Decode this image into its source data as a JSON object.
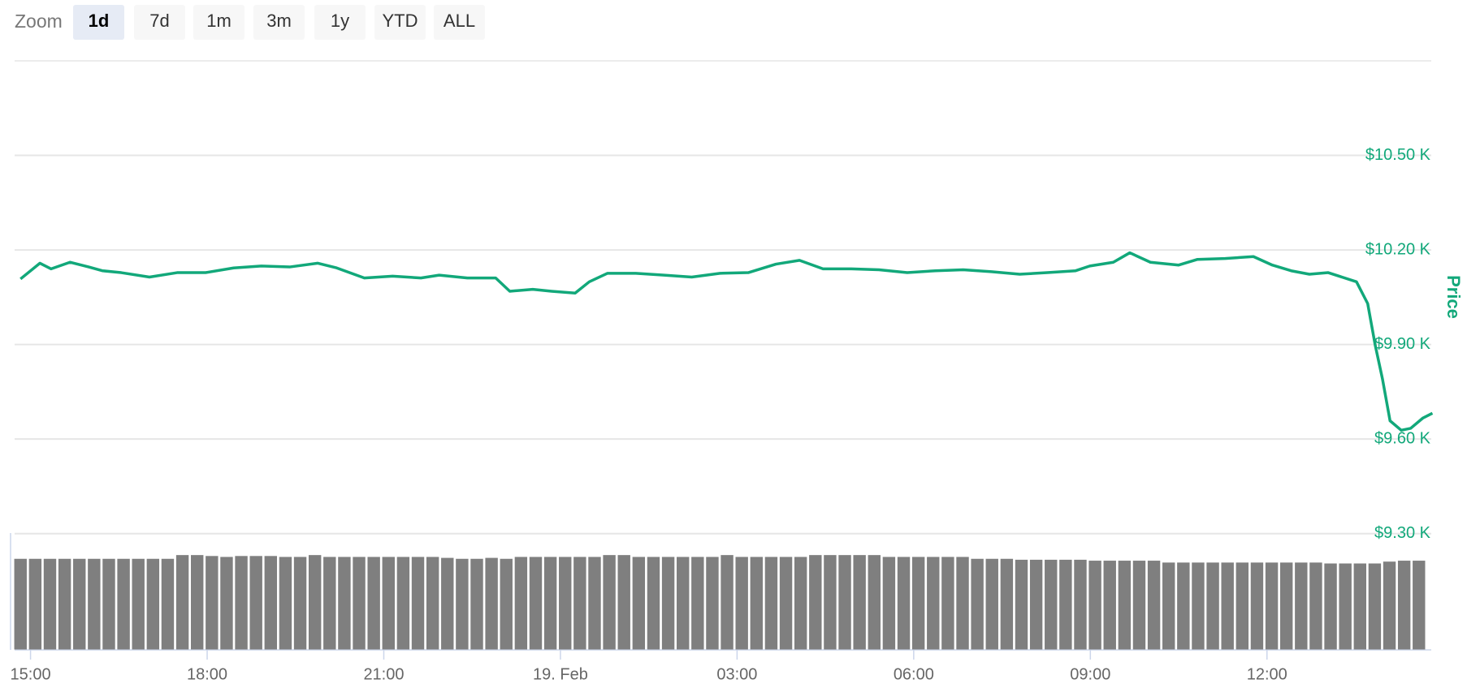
{
  "zoom": {
    "label": "Zoom",
    "buttons": [
      "1d",
      "7d",
      "1m",
      "3m",
      "1y",
      "YTD",
      "ALL"
    ],
    "selected": 0
  },
  "chart_data": {
    "type": "line",
    "y_title": "Price",
    "color": "#12a87a",
    "grid": true,
    "xlim": [
      14.73,
      38.79
    ],
    "xticks": [
      {
        "value": 15,
        "label": "15:00"
      },
      {
        "value": 18,
        "label": "18:00"
      },
      {
        "value": 21,
        "label": "21:00"
      },
      {
        "value": 24,
        "label": "19. Feb"
      },
      {
        "value": 27,
        "label": "03:00"
      },
      {
        "value": 30,
        "label": "06:00"
      },
      {
        "value": 33,
        "label": "09:00"
      },
      {
        "value": 36,
        "label": "12:00"
      }
    ],
    "ylim": [
      9300,
      10800
    ],
    "yticks": [
      {
        "value": 9300,
        "label": "$9.30 K"
      },
      {
        "value": 9600,
        "label": "$9.60 K"
      },
      {
        "value": 9900,
        "label": "$9.90 K"
      },
      {
        "value": 10200,
        "label": "$10.20 K"
      },
      {
        "value": 10500,
        "label": "$10.50 K"
      }
    ],
    "x": [
      14.83,
      15.16,
      15.35,
      15.67,
      15.99,
      16.22,
      16.54,
      17.02,
      17.49,
      17.97,
      18.45,
      18.92,
      19.4,
      19.88,
      20.2,
      20.67,
      21.15,
      21.63,
      21.94,
      22.42,
      22.9,
      23.14,
      23.53,
      23.85,
      24.25,
      24.49,
      24.8,
      25.28,
      25.76,
      26.23,
      26.71,
      27.19,
      27.66,
      28.06,
      28.46,
      28.94,
      29.41,
      29.89,
      30.37,
      30.84,
      31.32,
      31.8,
      32.27,
      32.75,
      32.99,
      33.39,
      33.67,
      34.02,
      34.5,
      34.82,
      35.29,
      35.77,
      36.09,
      36.41,
      36.72,
      37.04,
      37.52,
      37.71,
      37.84,
      37.96,
      38.09,
      38.28,
      38.44,
      38.65,
      38.81
    ],
    "values": [
      10108,
      10158,
      10140,
      10161,
      10146,
      10134,
      10128,
      10114,
      10128,
      10128,
      10143,
      10149,
      10146,
      10158,
      10143,
      10111,
      10117,
      10111,
      10120,
      10111,
      10111,
      10069,
      10075,
      10069,
      10063,
      10099,
      10126,
      10126,
      10120,
      10114,
      10126,
      10128,
      10155,
      10167,
      10140,
      10140,
      10137,
      10128,
      10134,
      10137,
      10131,
      10123,
      10128,
      10134,
      10149,
      10161,
      10191,
      10161,
      10152,
      10170,
      10173,
      10179,
      10152,
      10134,
      10123,
      10128,
      10099,
      10030,
      9896,
      9792,
      9658,
      9628,
      9634,
      9667,
      9682
    ],
    "volume": {
      "type": "bar",
      "color": "#7f7f7f",
      "ylim": [
        0,
        125
      ],
      "bar_hours": 0.25,
      "x": [
        14.83,
        15.08,
        15.33,
        15.58,
        15.83,
        16.08,
        16.33,
        16.58,
        16.83,
        17.08,
        17.33,
        17.58,
        17.83,
        18.08,
        18.33,
        18.58,
        18.83,
        19.08,
        19.33,
        19.58,
        19.83,
        20.08,
        20.33,
        20.58,
        20.83,
        21.08,
        21.33,
        21.58,
        21.83,
        22.08,
        22.33,
        22.58,
        22.83,
        23.08,
        23.33,
        23.58,
        23.83,
        24.08,
        24.33,
        24.58,
        24.83,
        25.08,
        25.33,
        25.58,
        25.83,
        26.08,
        26.33,
        26.58,
        26.83,
        27.08,
        27.33,
        27.58,
        27.83,
        28.08,
        28.33,
        28.58,
        28.83,
        29.08,
        29.33,
        29.58,
        29.83,
        30.08,
        30.33,
        30.58,
        30.83,
        31.08,
        31.33,
        31.58,
        31.83,
        32.08,
        32.33,
        32.58,
        32.83,
        33.08,
        33.33,
        33.58,
        33.83,
        34.08,
        34.33,
        34.58,
        34.83,
        35.08,
        35.33,
        35.58,
        35.83,
        36.08,
        36.33,
        36.58,
        36.83,
        37.08,
        37.33,
        37.58,
        37.83,
        38.08,
        38.33,
        38.58
      ],
      "values": [
        97,
        97,
        97,
        97,
        97,
        97,
        97,
        97,
        97,
        97,
        97,
        101,
        101,
        100,
        99,
        100,
        100,
        100,
        99,
        99,
        101,
        99,
        99,
        99,
        99,
        99,
        99,
        99,
        99,
        98,
        97,
        97,
        98,
        97,
        99,
        99,
        99,
        99,
        99,
        99,
        101,
        101,
        99,
        99,
        99,
        99,
        99,
        99,
        101,
        99,
        99,
        99,
        99,
        99,
        101,
        101,
        101,
        101,
        101,
        99,
        99,
        99,
        99,
        99,
        99,
        97,
        97,
        97,
        96,
        96,
        96,
        96,
        96,
        95,
        95,
        95,
        95,
        95,
        93,
        93,
        93,
        93,
        93,
        93,
        93,
        93,
        93,
        93,
        93,
        92,
        92,
        92,
        92,
        94,
        95,
        95
      ]
    }
  }
}
